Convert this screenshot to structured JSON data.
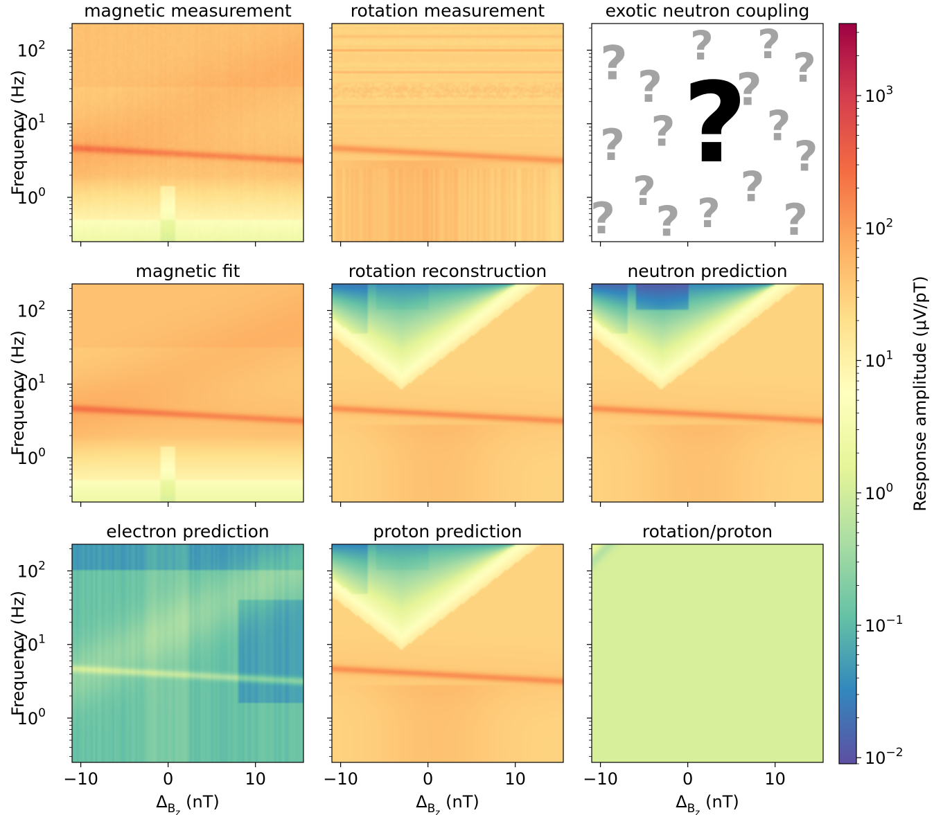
{
  "chart_data": {
    "type": "heatmap",
    "layout": "3x3 grid with shared x-axis, shared y-axis and one shared colorbar",
    "x_axis": {
      "label_main": "Δ",
      "label_sub": "B",
      "label_subsub": "z",
      "label_unit": "(nT)",
      "range": [
        -11,
        15.5
      ],
      "ticks": [
        -10,
        0,
        10
      ],
      "tick_labels": [
        "−10",
        "0",
        "10"
      ]
    },
    "y_axis": {
      "label": "Frequency (Hz)",
      "scale": "log",
      "range": [
        0.25,
        230
      ],
      "ticks": [
        1,
        10,
        100
      ],
      "tick_labels": [
        {
          "base": "10",
          "exp": "0"
        },
        {
          "base": "10",
          "exp": "1"
        },
        {
          "base": "10",
          "exp": "2"
        }
      ]
    },
    "colorbar": {
      "label": "Response amplitude (μV/pT)",
      "scale": "log",
      "range": [
        0.009,
        3500
      ],
      "colormap": "Spectral_r",
      "ticks": [
        0.01,
        0.1,
        1,
        10,
        100,
        1000
      ],
      "tick_labels": [
        {
          "base": "10",
          "exp": "−2"
        },
        {
          "base": "10",
          "exp": "−1"
        },
        {
          "base": "10",
          "exp": "0"
        },
        {
          "base": "10",
          "exp": "1"
        },
        {
          "base": "10",
          "exp": "2"
        },
        {
          "base": "10",
          "exp": "3"
        }
      ],
      "colors": [
        "#5e4fa2",
        "#3288bd",
        "#66c2a5",
        "#abdda4",
        "#e6f598",
        "#ffffbf",
        "#fee08b",
        "#fdae61",
        "#f46d43",
        "#d53e4f",
        "#9e0142"
      ]
    },
    "resonance": {
      "log10_freq_at_zero": 0.6,
      "slope_per_nT": -0.0065,
      "description": "bright ridge near 4 Hz across all responding panels"
    },
    "panels": [
      {
        "id": "magnetic_measurement",
        "title": "magnetic measurement",
        "row": 0,
        "col": 0,
        "kind": "magnetic",
        "noise": "measured",
        "base_log10_amplitude": 1.6
      },
      {
        "id": "rotation_measurement",
        "title": "rotation measurement",
        "row": 0,
        "col": 1,
        "kind": "rotation",
        "noise": "measured",
        "lines_hz": [
          150,
          100,
          50,
          17
        ],
        "base_log10_amplitude": 1.5
      },
      {
        "id": "exotic_neutron_coupling",
        "title": "exotic neutron coupling",
        "row": 0,
        "col": 2,
        "kind": "unknown",
        "glyph": "?"
      },
      {
        "id": "magnetic_fit",
        "title": "magnetic fit",
        "row": 1,
        "col": 0,
        "kind": "magnetic",
        "noise": "smooth",
        "base_log10_amplitude": 1.6
      },
      {
        "id": "rotation_reconstruction",
        "title": "rotation reconstruction",
        "row": 1,
        "col": 1,
        "kind": "rotation_model",
        "min_log10_amplitude": -1.8
      },
      {
        "id": "neutron_prediction",
        "title": "neutron prediction",
        "row": 1,
        "col": 2,
        "kind": "rotation_model",
        "min_log10_amplitude": -2.0
      },
      {
        "id": "electron_prediction",
        "title": "electron prediction",
        "row": 2,
        "col": 0,
        "kind": "electron",
        "base_log10_amplitude": -0.8
      },
      {
        "id": "proton_prediction",
        "title": "proton prediction",
        "row": 2,
        "col": 1,
        "kind": "rotation_model",
        "min_log10_amplitude": -1.6
      },
      {
        "id": "rotation_proton",
        "title": "rotation/proton",
        "row": 2,
        "col": 2,
        "kind": "ratio",
        "value": 1.0
      }
    ]
  }
}
